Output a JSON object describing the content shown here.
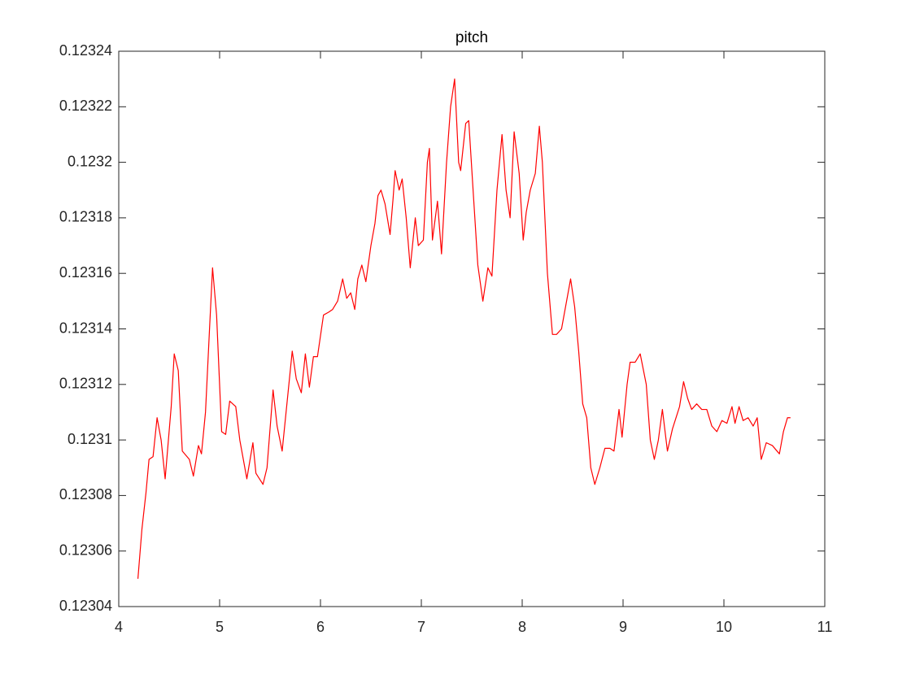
{
  "chart_data": {
    "type": "line",
    "title": "pitch",
    "color": "#ff0000",
    "x": [
      4.19,
      4.23,
      4.27,
      4.3,
      4.34,
      4.38,
      4.42,
      4.46,
      4.52,
      4.55,
      4.59,
      4.63,
      4.7,
      4.74,
      4.79,
      4.82,
      4.86,
      4.9,
      4.93,
      4.97,
      5.02,
      5.06,
      5.1,
      5.16,
      5.2,
      5.27,
      5.33,
      5.36,
      5.43,
      5.47,
      5.53,
      5.57,
      5.62,
      5.67,
      5.72,
      5.76,
      5.81,
      5.85,
      5.89,
      5.93,
      5.97,
      6.03,
      6.08,
      6.12,
      6.17,
      6.22,
      6.26,
      6.3,
      6.34,
      6.37,
      6.41,
      6.45,
      6.5,
      6.54,
      6.57,
      6.6,
      6.64,
      6.69,
      6.72,
      6.74,
      6.78,
      6.81,
      6.85,
      6.89,
      6.94,
      6.97,
      7.02,
      7.06,
      7.08,
      7.11,
      7.16,
      7.2,
      7.25,
      7.29,
      7.33,
      7.37,
      7.39,
      7.44,
      7.47,
      7.52,
      7.56,
      7.61,
      7.66,
      7.7,
      7.75,
      7.8,
      7.84,
      7.88,
      7.92,
      7.97,
      8.01,
      8.04,
      8.08,
      8.13,
      8.17,
      8.2,
      8.25,
      8.3,
      8.34,
      8.39,
      8.44,
      8.48,
      8.52,
      8.56,
      8.6,
      8.64,
      8.68,
      8.72,
      8.77,
      8.82,
      8.87,
      8.91,
      8.96,
      8.99,
      9.04,
      9.07,
      9.12,
      9.17,
      9.23,
      9.27,
      9.31,
      9.35,
      9.39,
      9.44,
      9.49,
      9.56,
      9.6,
      9.64,
      9.68,
      9.73,
      9.78,
      9.83,
      9.88,
      9.93,
      9.98,
      10.03,
      10.08,
      10.11,
      10.15,
      10.19,
      10.24,
      10.29,
      10.33,
      10.37,
      10.42,
      10.48,
      10.55,
      10.59,
      10.63,
      10.66
    ],
    "values": [
      0.12305,
      0.123068,
      0.123081,
      0.123093,
      0.123094,
      0.123108,
      0.1231,
      0.123086,
      0.123112,
      0.123131,
      0.123125,
      0.123096,
      0.123093,
      0.123087,
      0.123098,
      0.123095,
      0.12311,
      0.12314,
      0.123162,
      0.123145,
      0.123103,
      0.123102,
      0.123114,
      0.123112,
      0.1231,
      0.123086,
      0.123099,
      0.123088,
      0.123084,
      0.12309,
      0.123118,
      0.123105,
      0.123096,
      0.123114,
      0.123132,
      0.123122,
      0.123117,
      0.123131,
      0.123119,
      0.12313,
      0.12313,
      0.123145,
      0.123146,
      0.123147,
      0.12315,
      0.123158,
      0.123151,
      0.123153,
      0.123147,
      0.123158,
      0.123163,
      0.123157,
      0.12317,
      0.123178,
      0.123188,
      0.12319,
      0.123185,
      0.123174,
      0.123187,
      0.123197,
      0.12319,
      0.123194,
      0.12318,
      0.123162,
      0.12318,
      0.12317,
      0.123172,
      0.1232,
      0.123205,
      0.123172,
      0.123186,
      0.123167,
      0.1232,
      0.12322,
      0.12323,
      0.1232,
      0.123197,
      0.123214,
      0.123215,
      0.123186,
      0.123163,
      0.12315,
      0.123162,
      0.123159,
      0.12319,
      0.12321,
      0.12319,
      0.12318,
      0.123211,
      0.123196,
      0.123172,
      0.123182,
      0.12319,
      0.123196,
      0.123213,
      0.1232,
      0.12316,
      0.123138,
      0.123138,
      0.12314,
      0.12315,
      0.123158,
      0.123148,
      0.123132,
      0.123113,
      0.123108,
      0.12309,
      0.123084,
      0.12309,
      0.123097,
      0.123097,
      0.123096,
      0.123111,
      0.123101,
      0.12312,
      0.123128,
      0.123128,
      0.123131,
      0.12312,
      0.1231,
      0.123093,
      0.1231,
      0.123111,
      0.123096,
      0.123104,
      0.123112,
      0.123121,
      0.123115,
      0.123111,
      0.123113,
      0.123111,
      0.123111,
      0.123105,
      0.123103,
      0.123107,
      0.123106,
      0.123112,
      0.123106,
      0.123112,
      0.123107,
      0.123108,
      0.123105,
      0.123108,
      0.123093,
      0.123099,
      0.123098,
      0.123095,
      0.123103,
      0.123108,
      0.123108
    ],
    "xlim": [
      4,
      11
    ],
    "xticks": [
      4,
      5,
      6,
      7,
      8,
      9,
      10,
      11
    ],
    "ylim": [
      0.12304,
      0.12324
    ],
    "yticks": [
      0.12304,
      0.12306,
      0.12308,
      0.1231,
      0.12312,
      0.12314,
      0.12316,
      0.12318,
      0.1232,
      0.12322,
      0.12324
    ],
    "grid": false
  }
}
